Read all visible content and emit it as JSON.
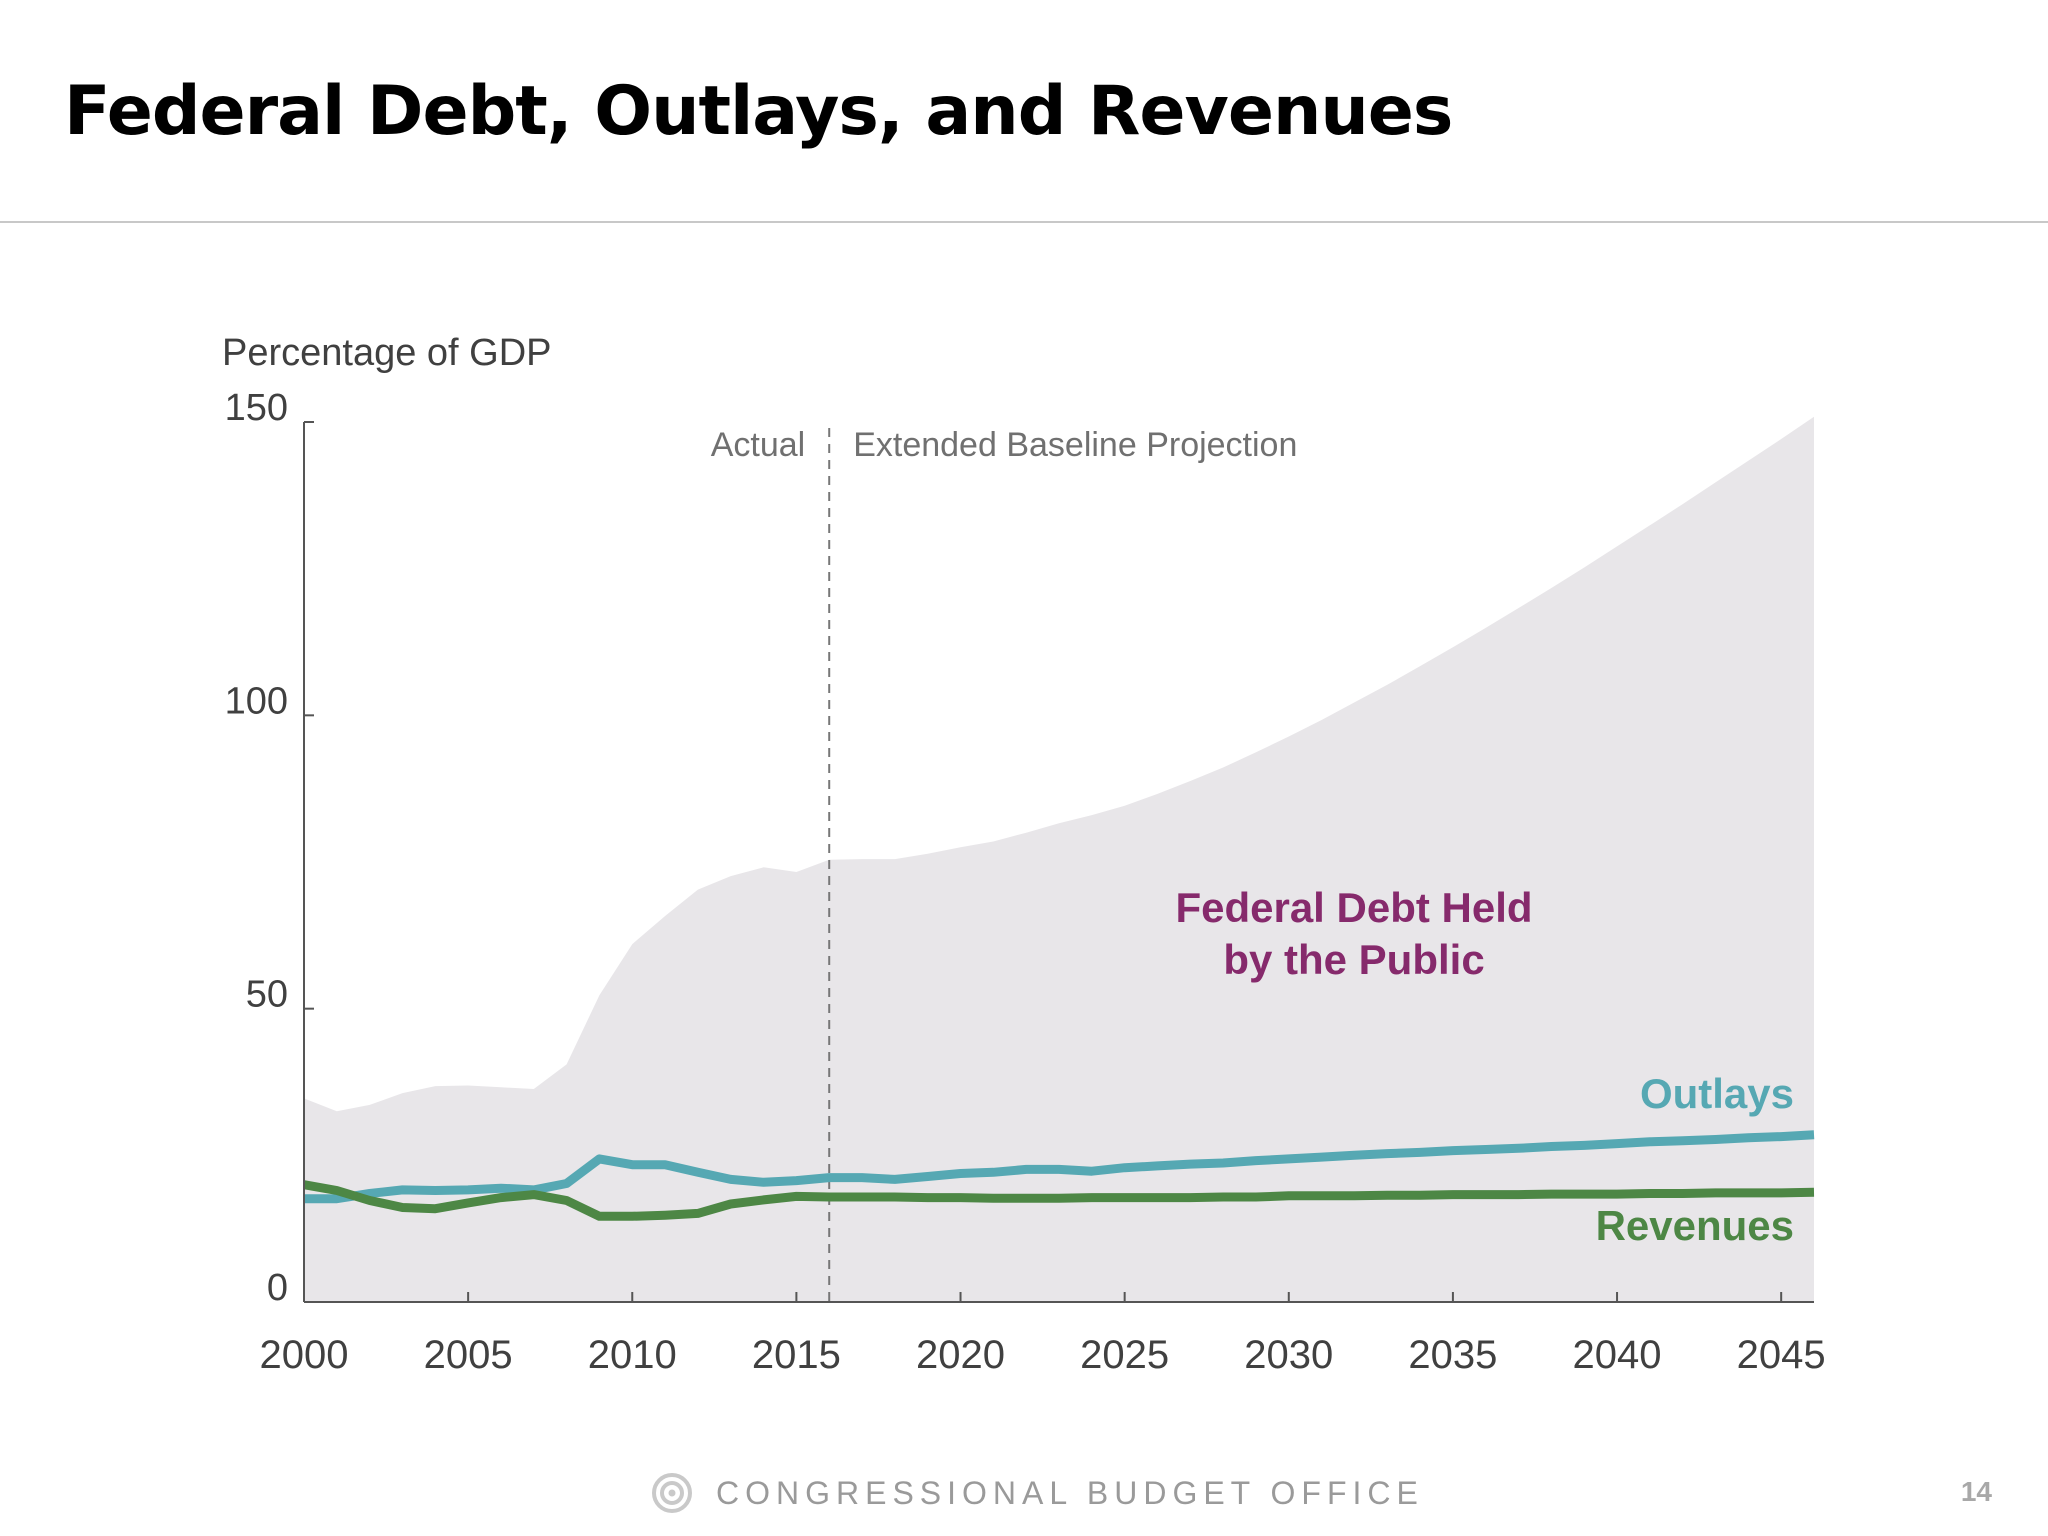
{
  "slide": {
    "title": "Federal Debt, Outlays, and Revenues",
    "footer": "CONGRESSIONAL BUDGET OFFICE",
    "page_number": "14"
  },
  "icons": {
    "footer_logo": "cbo-logo-icon"
  },
  "chart_data": {
    "type": "area",
    "title": "",
    "ylabel": "Percentage of GDP",
    "xlabel": "",
    "xlim": [
      2000,
      2046
    ],
    "ylim": [
      0,
      150
    ],
    "xticks": [
      2000,
      2005,
      2010,
      2015,
      2020,
      2025,
      2030,
      2035,
      2040,
      2045
    ],
    "yticks": [
      0,
      50,
      100,
      150
    ],
    "grid": false,
    "divider": {
      "x": 2016,
      "left_label": "Actual",
      "right_label": "Extended Baseline Projection"
    },
    "x": [
      2000,
      2001,
      2002,
      2003,
      2004,
      2005,
      2006,
      2007,
      2008,
      2009,
      2010,
      2011,
      2012,
      2013,
      2014,
      2015,
      2016,
      2017,
      2018,
      2019,
      2020,
      2021,
      2022,
      2023,
      2024,
      2025,
      2026,
      2027,
      2028,
      2029,
      2030,
      2031,
      2032,
      2033,
      2034,
      2035,
      2036,
      2037,
      2038,
      2039,
      2040,
      2041,
      2042,
      2043,
      2044,
      2045,
      2046
    ],
    "series": [
      {
        "name": "Federal Debt Held by the Public",
        "label_lines": [
          "Federal Debt Held",
          "by the Public"
        ],
        "kind": "area",
        "color": "#e8e6e9",
        "label_color": "#862a6c",
        "values": [
          34.7,
          32.5,
          33.6,
          35.6,
          36.8,
          36.9,
          36.6,
          36.3,
          40.5,
          52.3,
          61.0,
          65.8,
          70.3,
          72.6,
          74.1,
          73.3,
          75.4,
          75.5,
          75.5,
          76.4,
          77.5,
          78.5,
          80.0,
          81.6,
          83.0,
          84.6,
          86.6,
          88.8,
          91.1,
          93.7,
          96.4,
          99.2,
          102.2,
          105.2,
          108.4,
          111.6,
          114.9,
          118.3,
          121.7,
          125.2,
          128.8,
          132.4,
          136.0,
          139.7,
          143.4,
          147.1,
          150.9
        ]
      },
      {
        "name": "Outlays",
        "kind": "line",
        "color": "#56a8b3",
        "values": [
          17.6,
          17.6,
          18.5,
          19.1,
          19.0,
          19.1,
          19.4,
          19.1,
          20.2,
          24.4,
          23.4,
          23.4,
          22.1,
          20.9,
          20.4,
          20.7,
          21.2,
          21.2,
          20.9,
          21.4,
          21.9,
          22.1,
          22.6,
          22.6,
          22.3,
          22.9,
          23.2,
          23.5,
          23.7,
          24.1,
          24.4,
          24.7,
          25.0,
          25.3,
          25.5,
          25.8,
          26.0,
          26.2,
          26.5,
          26.7,
          27.0,
          27.3,
          27.5,
          27.7,
          28.0,
          28.2,
          28.5
        ]
      },
      {
        "name": "Revenues",
        "kind": "line",
        "color": "#4d8745",
        "values": [
          20.0,
          19.0,
          17.3,
          16.1,
          15.9,
          16.9,
          17.8,
          18.3,
          17.3,
          14.6,
          14.6,
          14.8,
          15.1,
          16.7,
          17.4,
          18.0,
          17.9,
          17.9,
          17.9,
          17.8,
          17.8,
          17.7,
          17.7,
          17.7,
          17.8,
          17.8,
          17.8,
          17.8,
          17.9,
          17.9,
          18.1,
          18.1,
          18.1,
          18.2,
          18.2,
          18.3,
          18.3,
          18.3,
          18.4,
          18.4,
          18.4,
          18.5,
          18.5,
          18.6,
          18.6,
          18.6,
          18.7
        ]
      }
    ]
  }
}
